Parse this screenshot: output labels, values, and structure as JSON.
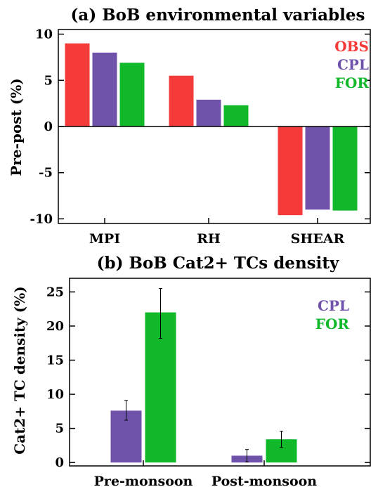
{
  "colors": {
    "OBS": "#f53a3a",
    "CPL": "#6f52aa",
    "FOR": "#11b92a"
  },
  "chart_data": [
    {
      "type": "bar",
      "title": "(a) BoB environmental variables",
      "xlabel": "",
      "ylabel": "Pre-post (%)",
      "categories": [
        "MPI",
        "RH",
        "SHEAR"
      ],
      "ylim": [
        -10.5,
        10.5
      ],
      "yticks": [
        10,
        5,
        0,
        -5,
        -10
      ],
      "ytick_labels": [
        "10",
        "5",
        "0",
        "-5",
        "-10"
      ],
      "legend_position": "top-right",
      "series": [
        {
          "name": "OBS",
          "values": [
            9.0,
            5.5,
            -9.6
          ]
        },
        {
          "name": "CPL",
          "values": [
            8.0,
            2.9,
            -9.0
          ]
        },
        {
          "name": "FOR",
          "values": [
            6.9,
            2.3,
            -9.1
          ]
        }
      ]
    },
    {
      "type": "bar",
      "title": "(b) BoB Cat2+ TCs density",
      "xlabel": "",
      "ylabel": "Cat2+ TC density (%)",
      "categories": [
        "Pre-monsoon",
        "Post-monsoon"
      ],
      "ylim": [
        -0.5,
        27
      ],
      "yticks": [
        0,
        5,
        10,
        15,
        20,
        25
      ],
      "ytick_labels": [
        "0",
        "5",
        "10",
        "15",
        "20",
        "25"
      ],
      "legend_position": "top-right",
      "series": [
        {
          "name": "CPL",
          "values": [
            7.6,
            1.0
          ],
          "error_low": [
            6.2,
            0.1
          ],
          "error_high": [
            9.1,
            1.9
          ]
        },
        {
          "name": "FOR",
          "values": [
            22.0,
            3.4
          ],
          "error_low": [
            18.2,
            2.2
          ],
          "error_high": [
            25.5,
            4.6
          ]
        }
      ]
    }
  ]
}
